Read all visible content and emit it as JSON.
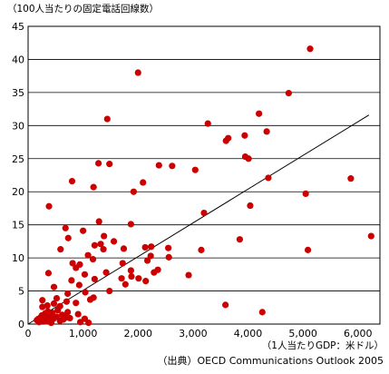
{
  "chart_data": {
    "type": "scatter",
    "ylabel": "（100人当たりの固定電話回線数）",
    "xlabel": "（1人当たりGDP：米ドル）",
    "source": "（出典）OECD Communications Outlook 2005",
    "xlim": [
      0,
      6400
    ],
    "ylim": [
      0,
      45
    ],
    "xticks": [
      0,
      1000,
      2000,
      3000,
      4000,
      5000,
      6000
    ],
    "xtick_labels": [
      "0",
      "1,000",
      "2,000",
      "3,000",
      "4,000",
      "5,000",
      "6,000"
    ],
    "yticks": [
      0,
      5,
      10,
      15,
      20,
      25,
      30,
      35,
      40,
      45
    ],
    "ytick_labels": [
      "0",
      "5",
      "10",
      "15",
      "20",
      "25",
      "30",
      "35",
      "40",
      "45"
    ],
    "grid": "horizontal",
    "marker_color": "#cc0000",
    "trendline": {
      "x": [
        0,
        6200
      ],
      "y": [
        0,
        31.6
      ]
    },
    "points": [
      [
        2000,
        38.0
      ],
      [
        5130,
        41.6
      ],
      [
        4740,
        34.9
      ],
      [
        1440,
        31.0
      ],
      [
        4200,
        31.8
      ],
      [
        3270,
        30.3
      ],
      [
        4340,
        29.1
      ],
      [
        3640,
        28.1
      ],
      [
        3940,
        28.5
      ],
      [
        3600,
        27.7
      ],
      [
        4010,
        25.0
      ],
      [
        3950,
        25.3
      ],
      [
        1280,
        24.3
      ],
      [
        1480,
        24.2
      ],
      [
        2380,
        24.0
      ],
      [
        2620,
        23.9
      ],
      [
        3040,
        23.3
      ],
      [
        4370,
        22.1
      ],
      [
        5870,
        22.0
      ],
      [
        800,
        21.6
      ],
      [
        1190,
        20.7
      ],
      [
        1920,
        20.0
      ],
      [
        2090,
        21.4
      ],
      [
        5050,
        19.7
      ],
      [
        380,
        17.8
      ],
      [
        4040,
        17.9
      ],
      [
        3200,
        16.8
      ],
      [
        1290,
        15.5
      ],
      [
        1870,
        15.1
      ],
      [
        680,
        14.5
      ],
      [
        1000,
        14.1
      ],
      [
        1380,
        13.3
      ],
      [
        1560,
        12.5
      ],
      [
        730,
        13.0
      ],
      [
        3850,
        12.8
      ],
      [
        6240,
        13.3
      ],
      [
        1210,
        11.9
      ],
      [
        1320,
        12.1
      ],
      [
        1740,
        11.4
      ],
      [
        2130,
        11.6
      ],
      [
        2240,
        11.7
      ],
      [
        2550,
        11.5
      ],
      [
        3150,
        11.2
      ],
      [
        5090,
        11.2
      ],
      [
        590,
        11.3
      ],
      [
        2230,
        10.3
      ],
      [
        1370,
        11.3
      ],
      [
        1090,
        10.4
      ],
      [
        940,
        9.0
      ],
      [
        810,
        9.2
      ],
      [
        1180,
        9.8
      ],
      [
        870,
        8.5
      ],
      [
        1720,
        9.2
      ],
      [
        2170,
        9.6
      ],
      [
        2560,
        10.1
      ],
      [
        2360,
        8.2
      ],
      [
        2290,
        7.8
      ],
      [
        1870,
        8.1
      ],
      [
        1030,
        7.5
      ],
      [
        1420,
        7.8
      ],
      [
        1700,
        6.9
      ],
      [
        1880,
        7.2
      ],
      [
        2010,
        6.9
      ],
      [
        2920,
        7.4
      ],
      [
        1770,
        6.0
      ],
      [
        2140,
        6.5
      ],
      [
        1210,
        6.8
      ],
      [
        790,
        6.6
      ],
      [
        930,
        5.9
      ],
      [
        370,
        7.7
      ],
      [
        470,
        5.6
      ],
      [
        1040,
        4.8
      ],
      [
        720,
        4.6
      ],
      [
        1480,
        5.0
      ],
      [
        1190,
        4.0
      ],
      [
        520,
        3.9
      ],
      [
        260,
        3.6
      ],
      [
        3590,
        2.9
      ],
      [
        4260,
        1.8
      ],
      [
        260,
        2.6
      ],
      [
        350,
        2.8
      ],
      [
        470,
        3.1
      ],
      [
        580,
        2.7
      ],
      [
        700,
        3.4
      ],
      [
        870,
        3.2
      ],
      [
        1130,
        3.7
      ],
      [
        370,
        1.2
      ],
      [
        440,
        1.7
      ],
      [
        540,
        2.1
      ],
      [
        620,
        1.4
      ],
      [
        720,
        1.8
      ],
      [
        190,
        0.8
      ],
      [
        250,
        1.3
      ],
      [
        300,
        1.0
      ],
      [
        330,
        0.4
      ],
      [
        400,
        0.6
      ],
      [
        460,
        0.8
      ],
      [
        520,
        1.1
      ],
      [
        580,
        0.5
      ],
      [
        640,
        0.7
      ],
      [
        690,
        1.0
      ],
      [
        760,
        0.9
      ],
      [
        950,
        0.3
      ],
      [
        1030,
        0.8
      ],
      [
        1100,
        0.2
      ],
      [
        200,
        0.3
      ],
      [
        270,
        0.5
      ],
      [
        420,
        0.2
      ],
      [
        910,
        1.5
      ],
      [
        160,
        0.6
      ],
      [
        230,
        1.0
      ],
      [
        310,
        1.6
      ],
      [
        360,
        1.9
      ]
    ]
  }
}
